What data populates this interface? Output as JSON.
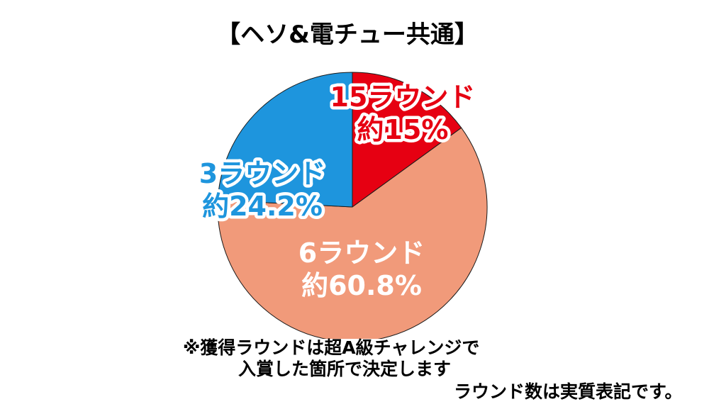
{
  "chart_data": {
    "type": "pie",
    "title": "【ヘソ&電チュー共通】",
    "slices": [
      {
        "label": "15ラウンド",
        "value_text": "約15%",
        "value": 15,
        "color": "#e60012"
      },
      {
        "label": "6ラウンド",
        "value_text": "約60.8%",
        "value": 60.8,
        "color": "#f19a7a"
      },
      {
        "label": "3ラウンド",
        "value_text": "約24.2%",
        "value": 24.2,
        "color": "#1e95dd"
      }
    ],
    "start_angle_deg": 0,
    "direction": "clockwise",
    "legend": "none",
    "grid": false
  },
  "notes": {
    "line1": "※獲得ラウンドは超A級チャレンジで",
    "line2": "入賞した箇所で決定します",
    "line3": "ラウンド数は実質表記です。"
  }
}
